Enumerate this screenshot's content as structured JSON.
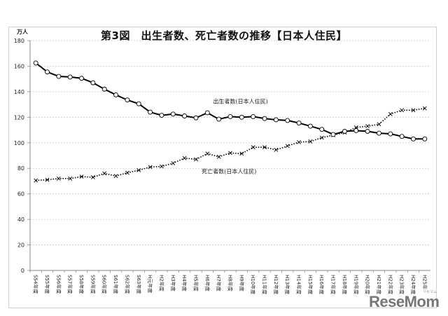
{
  "chart_data": {
    "type": "line",
    "title": "第3図　出生者数、死亡者数の推移【日本人住民】",
    "ylabel": "万人",
    "xlabel": "",
    "ylim": [
      0,
      180
    ],
    "yticks": [
      0,
      20,
      40,
      60,
      80,
      100,
      120,
      140,
      160,
      180
    ],
    "grid": true,
    "categories": [
      "S54年度",
      "S55年度",
      "S56年度",
      "S57年度",
      "S58年度",
      "S59年度",
      "S60年度",
      "S61年度",
      "S62年度",
      "S63年度",
      "H元年度",
      "H2年度",
      "H3年度",
      "H4年度",
      "H5年度",
      "H6年度",
      "H7年度",
      "H8年度",
      "H9年度",
      "H10年度",
      "H11年度",
      "H12年度",
      "H13年度",
      "H14年度",
      "H15年度",
      "H16年度",
      "H17年度",
      "H18年度",
      "H19年度",
      "H20年度",
      "H21年度",
      "H22年度",
      "H23年度",
      "H24年度",
      "H25年"
    ],
    "series": [
      {
        "name": "出生者数(日本人住民)",
        "style": "solid-circle",
        "color": "#000000",
        "values": [
          162.5,
          155.5,
          152,
          151.5,
          150.5,
          147,
          142,
          137.5,
          133.5,
          130.5,
          124,
          121.5,
          122.5,
          121,
          119.5,
          123.5,
          118.5,
          120.5,
          120,
          120.5,
          119,
          118,
          117.5,
          115.5,
          113,
          110.5,
          106.5,
          109,
          109.5,
          109,
          107.5,
          107,
          105,
          103,
          103
        ]
      },
      {
        "name": "死亡者数(日本人住民)",
        "style": "dotted-x",
        "color": "#000000",
        "values": [
          70.5,
          71,
          72,
          72,
          73.5,
          73,
          76,
          74,
          76.5,
          78.5,
          81,
          81.5,
          84,
          88,
          87,
          91.5,
          89,
          92,
          91.5,
          96.5,
          96.5,
          94.5,
          97.5,
          100.5,
          101,
          104,
          106,
          108,
          112,
          113,
          114.5,
          122.5,
          125.5,
          125.5,
          127
        ]
      }
    ],
    "annotations": [
      {
        "text": "出生者数(日本人住民)",
        "x_index": 15.5,
        "y": 131
      },
      {
        "text": "死亡者数(日本人住民)",
        "x_index": 14.5,
        "y": 76
      }
    ]
  },
  "page": {
    "title": "第3図　出生者数、死亡者数の推移【日本人住民】",
    "unit": "万人",
    "watermark": "ReseMom",
    "watermark_sub": "リセマム"
  }
}
